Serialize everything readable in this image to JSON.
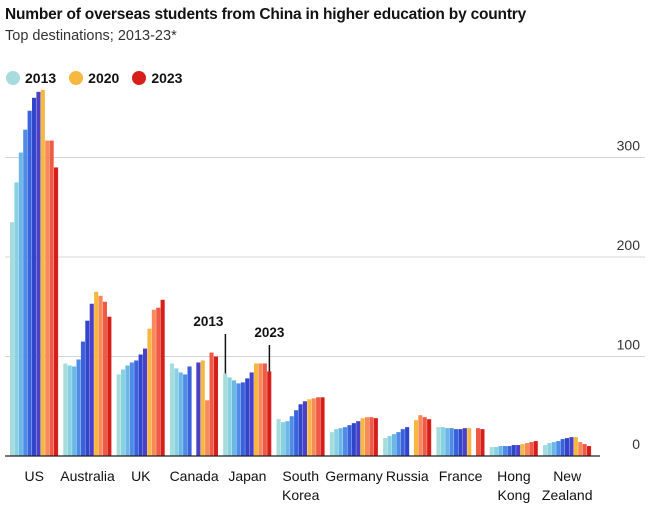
{
  "title": "Number of overseas students from China in higher education by country",
  "subtitle": "Top destinations; 2013-23*",
  "legend": [
    {
      "label": "2013",
      "color": "#a8dcdc"
    },
    {
      "label": "2020",
      "color": "#f7b840"
    },
    {
      "label": "2023",
      "color": "#d71f1a"
    }
  ],
  "annotations": [
    {
      "label": "2013",
      "country": "Japan",
      "year_index": 0
    },
    {
      "label": "2023",
      "country": "Japan",
      "year_index": 10
    }
  ],
  "chart_data": {
    "type": "bar",
    "title": "Number of overseas students from China in higher education by country",
    "subtitle": "Top destinations; 2013-23*",
    "xlabel": "",
    "ylabel": "",
    "years": [
      "2013",
      "2014",
      "2015",
      "2016",
      "2017",
      "2018",
      "2019",
      "2020",
      "2021",
      "2022",
      "2023"
    ],
    "year_colors": [
      "#a8dcdc",
      "#86d2e2",
      "#6cb6e8",
      "#4e8ce6",
      "#3a62dc",
      "#2f45cc",
      "#4c40c8",
      "#f7b840",
      "#f88a5a",
      "#ee5a45",
      "#d71f1a"
    ],
    "ylim": [
      0,
      370
    ],
    "yticks": [
      "300",
      "200",
      "100",
      "0"
    ],
    "gridlines": true,
    "legend_position": "top-left",
    "categories": [
      "US",
      "Australia",
      "UK",
      "Canada",
      "Japan",
      "South Korea",
      "Germany",
      "Russia",
      "France",
      "Hong Kong",
      "New Zealand"
    ],
    "category_labels": [
      [
        "US"
      ],
      [
        "Australia"
      ],
      [
        "UK"
      ],
      [
        "Canada"
      ],
      [
        "Japan"
      ],
      [
        "South",
        "Korea"
      ],
      [
        "Germany"
      ],
      [
        "Russia"
      ],
      [
        "France"
      ],
      [
        "Hong",
        "Kong"
      ],
      [
        "New",
        "Zealand"
      ]
    ],
    "series": [
      {
        "name": "US",
        "values": [
          235,
          275,
          305,
          328,
          347,
          360,
          366,
          368,
          317,
          317,
          290
        ]
      },
      {
        "name": "Australia",
        "values": [
          93,
          91,
          90,
          97,
          115,
          136,
          153,
          165,
          161,
          155,
          140
        ]
      },
      {
        "name": "UK",
        "values": [
          82,
          87,
          91,
          94,
          96,
          102,
          108,
          128,
          147,
          149,
          157
        ]
      },
      {
        "name": "Canada",
        "values": [
          93,
          88,
          84,
          82,
          90,
          null,
          94,
          96,
          56,
          104,
          100
        ]
      },
      {
        "name": "Japan",
        "values": [
          83,
          79,
          76,
          73,
          74,
          78,
          84,
          93,
          93,
          93,
          85
        ]
      },
      {
        "name": "South Korea",
        "values": [
          37,
          34,
          35,
          40,
          46,
          52,
          55,
          57,
          58,
          59,
          59
        ]
      },
      {
        "name": "Germany",
        "values": [
          24,
          27,
          28,
          29,
          31,
          33,
          35,
          38,
          39,
          39,
          38
        ]
      },
      {
        "name": "Russia",
        "values": [
          18,
          20,
          22,
          24,
          27,
          29,
          null,
          36,
          41,
          39,
          37
        ]
      },
      {
        "name": "France",
        "values": [
          29,
          29,
          28,
          28,
          27,
          27,
          28,
          28,
          null,
          28,
          27
        ]
      },
      {
        "name": "Hong Kong",
        "values": [
          9,
          9,
          10,
          10,
          10,
          11,
          11,
          12,
          13,
          14,
          15
        ]
      },
      {
        "name": "New Zealand",
        "values": [
          11,
          13,
          14,
          15,
          17,
          18,
          19,
          19,
          14,
          12,
          10
        ]
      }
    ]
  }
}
